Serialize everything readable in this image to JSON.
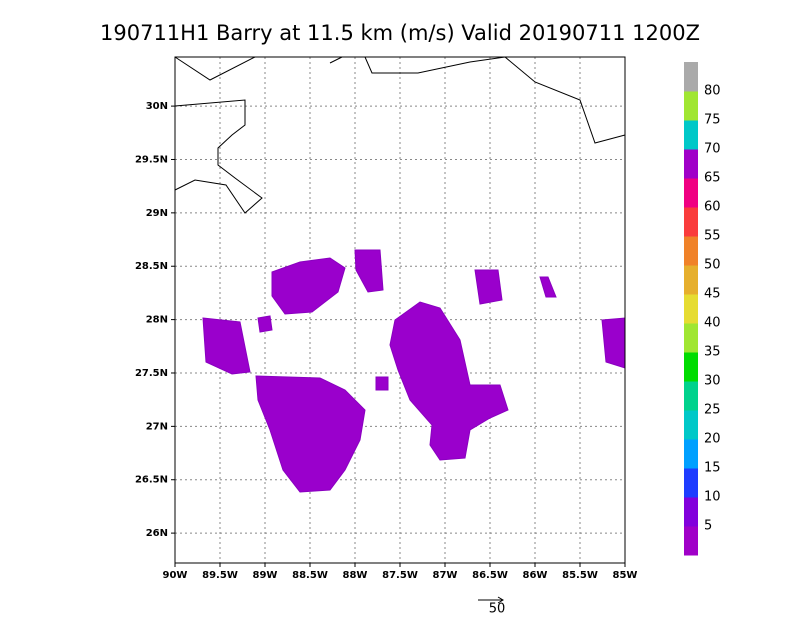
{
  "title": "190711H1 Barry at 11.5 km (m/s) Valid 20190711  1200Z",
  "map": {
    "type": "map",
    "xlim": [
      -90,
      -85
    ],
    "ylim": [
      25.72,
      30.46
    ],
    "grid": true,
    "xticks": [
      {
        "value": -90,
        "label": "90W"
      },
      {
        "value": -89.5,
        "label": "89.5W"
      },
      {
        "value": -89,
        "label": "89W"
      },
      {
        "value": -88.5,
        "label": "88.5W"
      },
      {
        "value": -88,
        "label": "88W"
      },
      {
        "value": -87.5,
        "label": "87.5W"
      },
      {
        "value": -87,
        "label": "87W"
      },
      {
        "value": -86.5,
        "label": "86.5W"
      },
      {
        "value": -86,
        "label": "86W"
      },
      {
        "value": -85.5,
        "label": "85.5W"
      },
      {
        "value": -85,
        "label": "85W"
      }
    ],
    "yticks": [
      {
        "value": 26,
        "label": "26N"
      },
      {
        "value": 26.5,
        "label": "26.5N"
      },
      {
        "value": 27,
        "label": "27N"
      },
      {
        "value": 27.5,
        "label": "27.5N"
      },
      {
        "value": 28,
        "label": "28N"
      },
      {
        "value": 28.5,
        "label": "28.5N"
      },
      {
        "value": 29,
        "label": "29N"
      },
      {
        "value": 29.5,
        "label": "29.5N"
      },
      {
        "value": 30,
        "label": "30N"
      }
    ]
  },
  "colorbar": {
    "ticks": [
      5,
      10,
      15,
      20,
      25,
      30,
      35,
      40,
      45,
      50,
      55,
      60,
      65,
      70,
      75,
      80
    ],
    "colors": [
      "#a000c8",
      "#8200dc",
      "#1e3cff",
      "#00a0ff",
      "#00c8c8",
      "#00d28c",
      "#00dc00",
      "#a0e632",
      "#e6dc32",
      "#e6af2d",
      "#f08228",
      "#fa3c3c",
      "#f00082",
      "#a000c8",
      "#00c8c8",
      "#a0e632",
      "#aaaaaa"
    ]
  },
  "vector_scale": 50
}
